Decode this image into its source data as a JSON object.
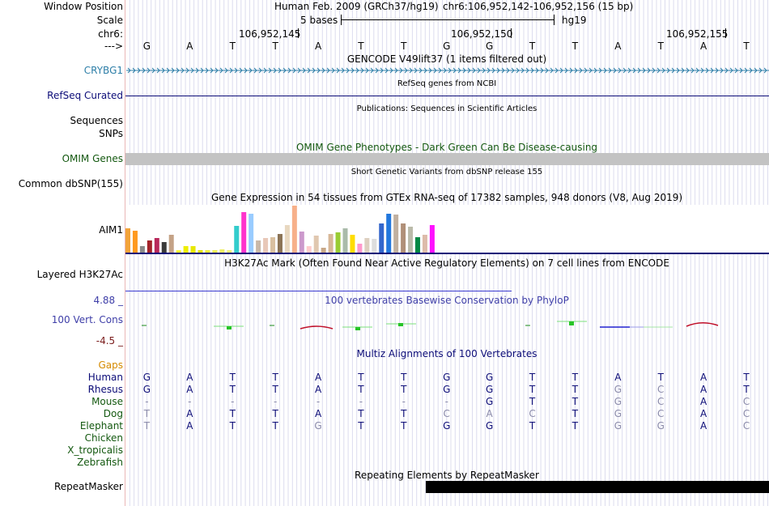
{
  "header": {
    "window_position_label": "Window Position",
    "assembly": "Human Feb. 2009 (GRCh37/hg19)",
    "position": "chr6:106,952,142-106,952,156 (15 bp)",
    "scale_label": "Scale",
    "scale_text": "5 bases",
    "db": "hg19",
    "chrom_label": "chr6:",
    "strand_label": "--->",
    "coords": [
      "106,952,145",
      "106,952,150",
      "106,952,155"
    ]
  },
  "reference_bases": [
    "G",
    "A",
    "T",
    "T",
    "A",
    "T",
    "T",
    "G",
    "G",
    "T",
    "T",
    "A",
    "T",
    "A",
    "T"
  ],
  "tracks": {
    "gencode": {
      "title": "GENCODE V49lift37 (1 items filtered out)",
      "gene": "CRYBG1",
      "color": "#2e7fa8"
    },
    "refseq": {
      "title": "RefSeq genes from NCBI",
      "label": "RefSeq Curated",
      "color": "#0c0c78"
    },
    "publications": {
      "title": "Publications: Sequences in Scientific Articles",
      "label1": "Sequences",
      "label2": "SNPs"
    },
    "omim": {
      "title": "OMIM Gene Phenotypes - Dark Green Can Be Disease-causing",
      "label": "OMIM Genes",
      "color": "#13580f"
    },
    "dbsnp": {
      "title": "Short Genetic Variants from dbSNP release 155",
      "label": "Common dbSNP(155)"
    },
    "gtex": {
      "title": "Gene Expression in 54 tissues from GTEx RNA-seq of 17382 samples, 948 donors (V8, Aug 2019)",
      "label": "AIM1"
    },
    "h3k27ac": {
      "title": "H3K27Ac Mark (Often Found Near Active Regulatory Elements) on 7 cell lines from ENCODE",
      "label": "Layered H3K27Ac"
    },
    "phylop": {
      "title": "100 vertebrates Basewise Conservation by PhyloP",
      "label": "100 Vert. Cons",
      "max": "4.88 _",
      "min": "-4.5 _"
    },
    "multiz": {
      "title": "Multiz Alignments of 100 Vertebrates",
      "gaps_label": "Gaps",
      "species": [
        {
          "name": "Human",
          "color": "#0c0c78",
          "bases": [
            "G",
            "A",
            "T",
            "T",
            "A",
            "T",
            "T",
            "G",
            "G",
            "T",
            "T",
            "A",
            "T",
            "A",
            "T"
          ]
        },
        {
          "name": "Rhesus",
          "color": "#0c0c78",
          "bases": [
            "G",
            "A",
            "T",
            "T",
            "A",
            "T",
            "T",
            "G",
            "G",
            "T",
            "T",
            "G",
            "C",
            "A",
            "T"
          ]
        },
        {
          "name": "Mouse",
          "color": "#13580f",
          "bases": [
            "-",
            "-",
            "-",
            "-",
            "-",
            "-",
            "-",
            "-",
            "G",
            "T",
            "T",
            "G",
            "C",
            "A",
            "C"
          ]
        },
        {
          "name": "Dog",
          "color": "#13580f",
          "bases": [
            "T",
            "A",
            "T",
            "T",
            "A",
            "T",
            "T",
            "C",
            "A",
            "C",
            "T",
            "G",
            "C",
            "A",
            "C"
          ]
        },
        {
          "name": "Elephant",
          "color": "#13580f",
          "bases": [
            "T",
            "A",
            "T",
            "T",
            "G",
            "T",
            "T",
            "G",
            "G",
            "T",
            "T",
            "G",
            "G",
            "A",
            "C"
          ]
        },
        {
          "name": "Chicken",
          "color": "#13580f",
          "bases": []
        },
        {
          "name": "X_tropicalis",
          "color": "#13580f",
          "bases": []
        },
        {
          "name": "Zebrafish",
          "color": "#13580f",
          "bases": []
        }
      ]
    },
    "repeatmasker": {
      "title": "Repeating Elements by RepeatMasker",
      "label": "RepeatMasker"
    }
  },
  "colors": {
    "mismatch_base": "#8a8aaa",
    "match_base": "#0c0c78",
    "gaps": "#d58a00",
    "phylop_label": "#3e3ea8",
    "phylop_min": "#7a1c1c"
  }
}
